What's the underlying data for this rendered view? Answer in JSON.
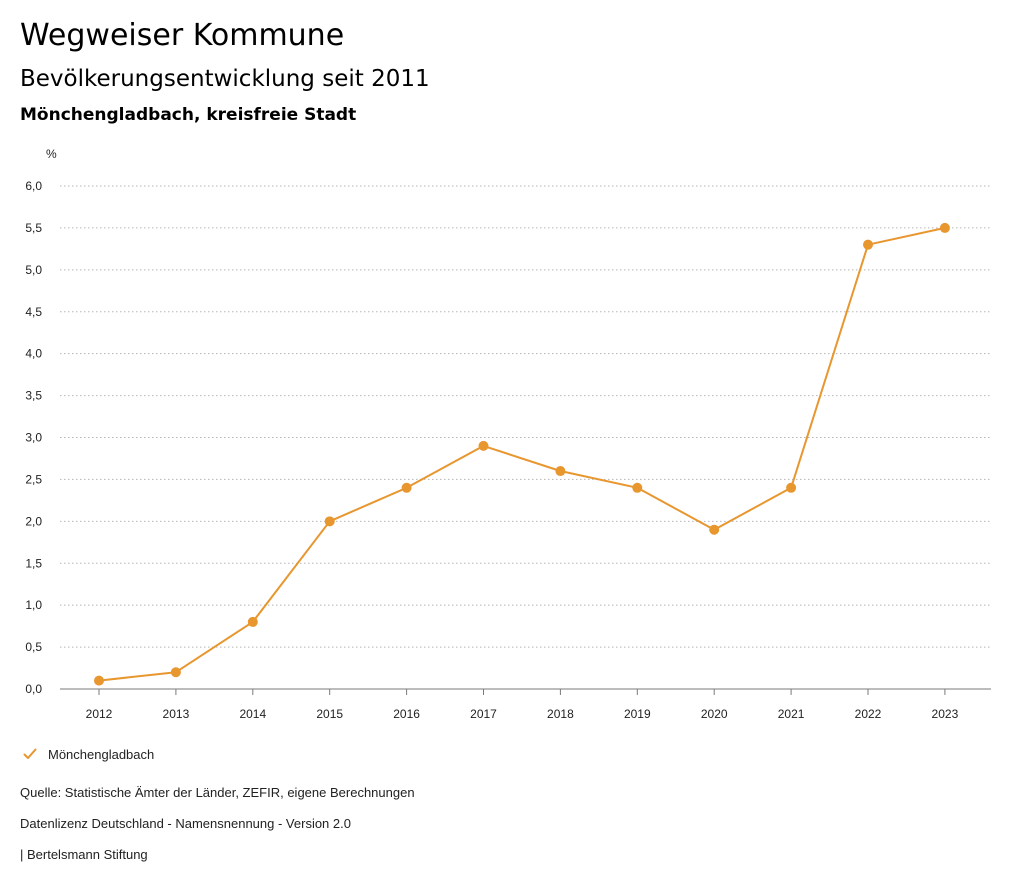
{
  "header": {
    "title": "Wegweiser Kommune",
    "subtitle": "Bevölkerungsentwicklung seit 2011",
    "region": "Mönchengladbach, kreisfreie Stadt"
  },
  "chart_data": {
    "type": "line",
    "unit_label": "%",
    "x": [
      "2012",
      "2013",
      "2014",
      "2015",
      "2016",
      "2017",
      "2018",
      "2019",
      "2020",
      "2021",
      "2022",
      "2023"
    ],
    "series": [
      {
        "name": "Mönchengladbach",
        "values": [
          0.1,
          0.2,
          0.8,
          2.0,
          2.4,
          2.9,
          2.6,
          2.4,
          1.9,
          2.4,
          5.3,
          5.5
        ]
      }
    ],
    "y_ticks": [
      {
        "value": 0,
        "label": "0,0"
      },
      {
        "value": 0.5,
        "label": "0,5"
      },
      {
        "value": 1,
        "label": "1,0"
      },
      {
        "value": 1.5,
        "label": "1,5"
      },
      {
        "value": 2,
        "label": "2,0"
      },
      {
        "value": 2.5,
        "label": "2,5"
      },
      {
        "value": 3,
        "label": "3,0"
      },
      {
        "value": 3.5,
        "label": "3,5"
      },
      {
        "value": 4,
        "label": "4,0"
      },
      {
        "value": 4.5,
        "label": "4,5"
      },
      {
        "value": 5,
        "label": "5,0"
      },
      {
        "value": 5.5,
        "label": "5,5"
      },
      {
        "value": 6,
        "label": "6,0"
      }
    ],
    "ylim": [
      0,
      6
    ],
    "grid": true,
    "legend_position": "bottom-left",
    "series_color": "#E8962E",
    "grid_color": "#b5b5b5",
    "axis_color": "#7a7a7a"
  },
  "legend": {
    "label": "Mönchengladbach",
    "icon": "check-icon"
  },
  "footer": {
    "source": "Quelle: Statistische Ämter der Länder, ZEFIR, eigene Berechnungen",
    "license": "Datenlizenz Deutschland - Namensnennung - Version 2.0",
    "publisher": "| Bertelsmann Stiftung"
  }
}
